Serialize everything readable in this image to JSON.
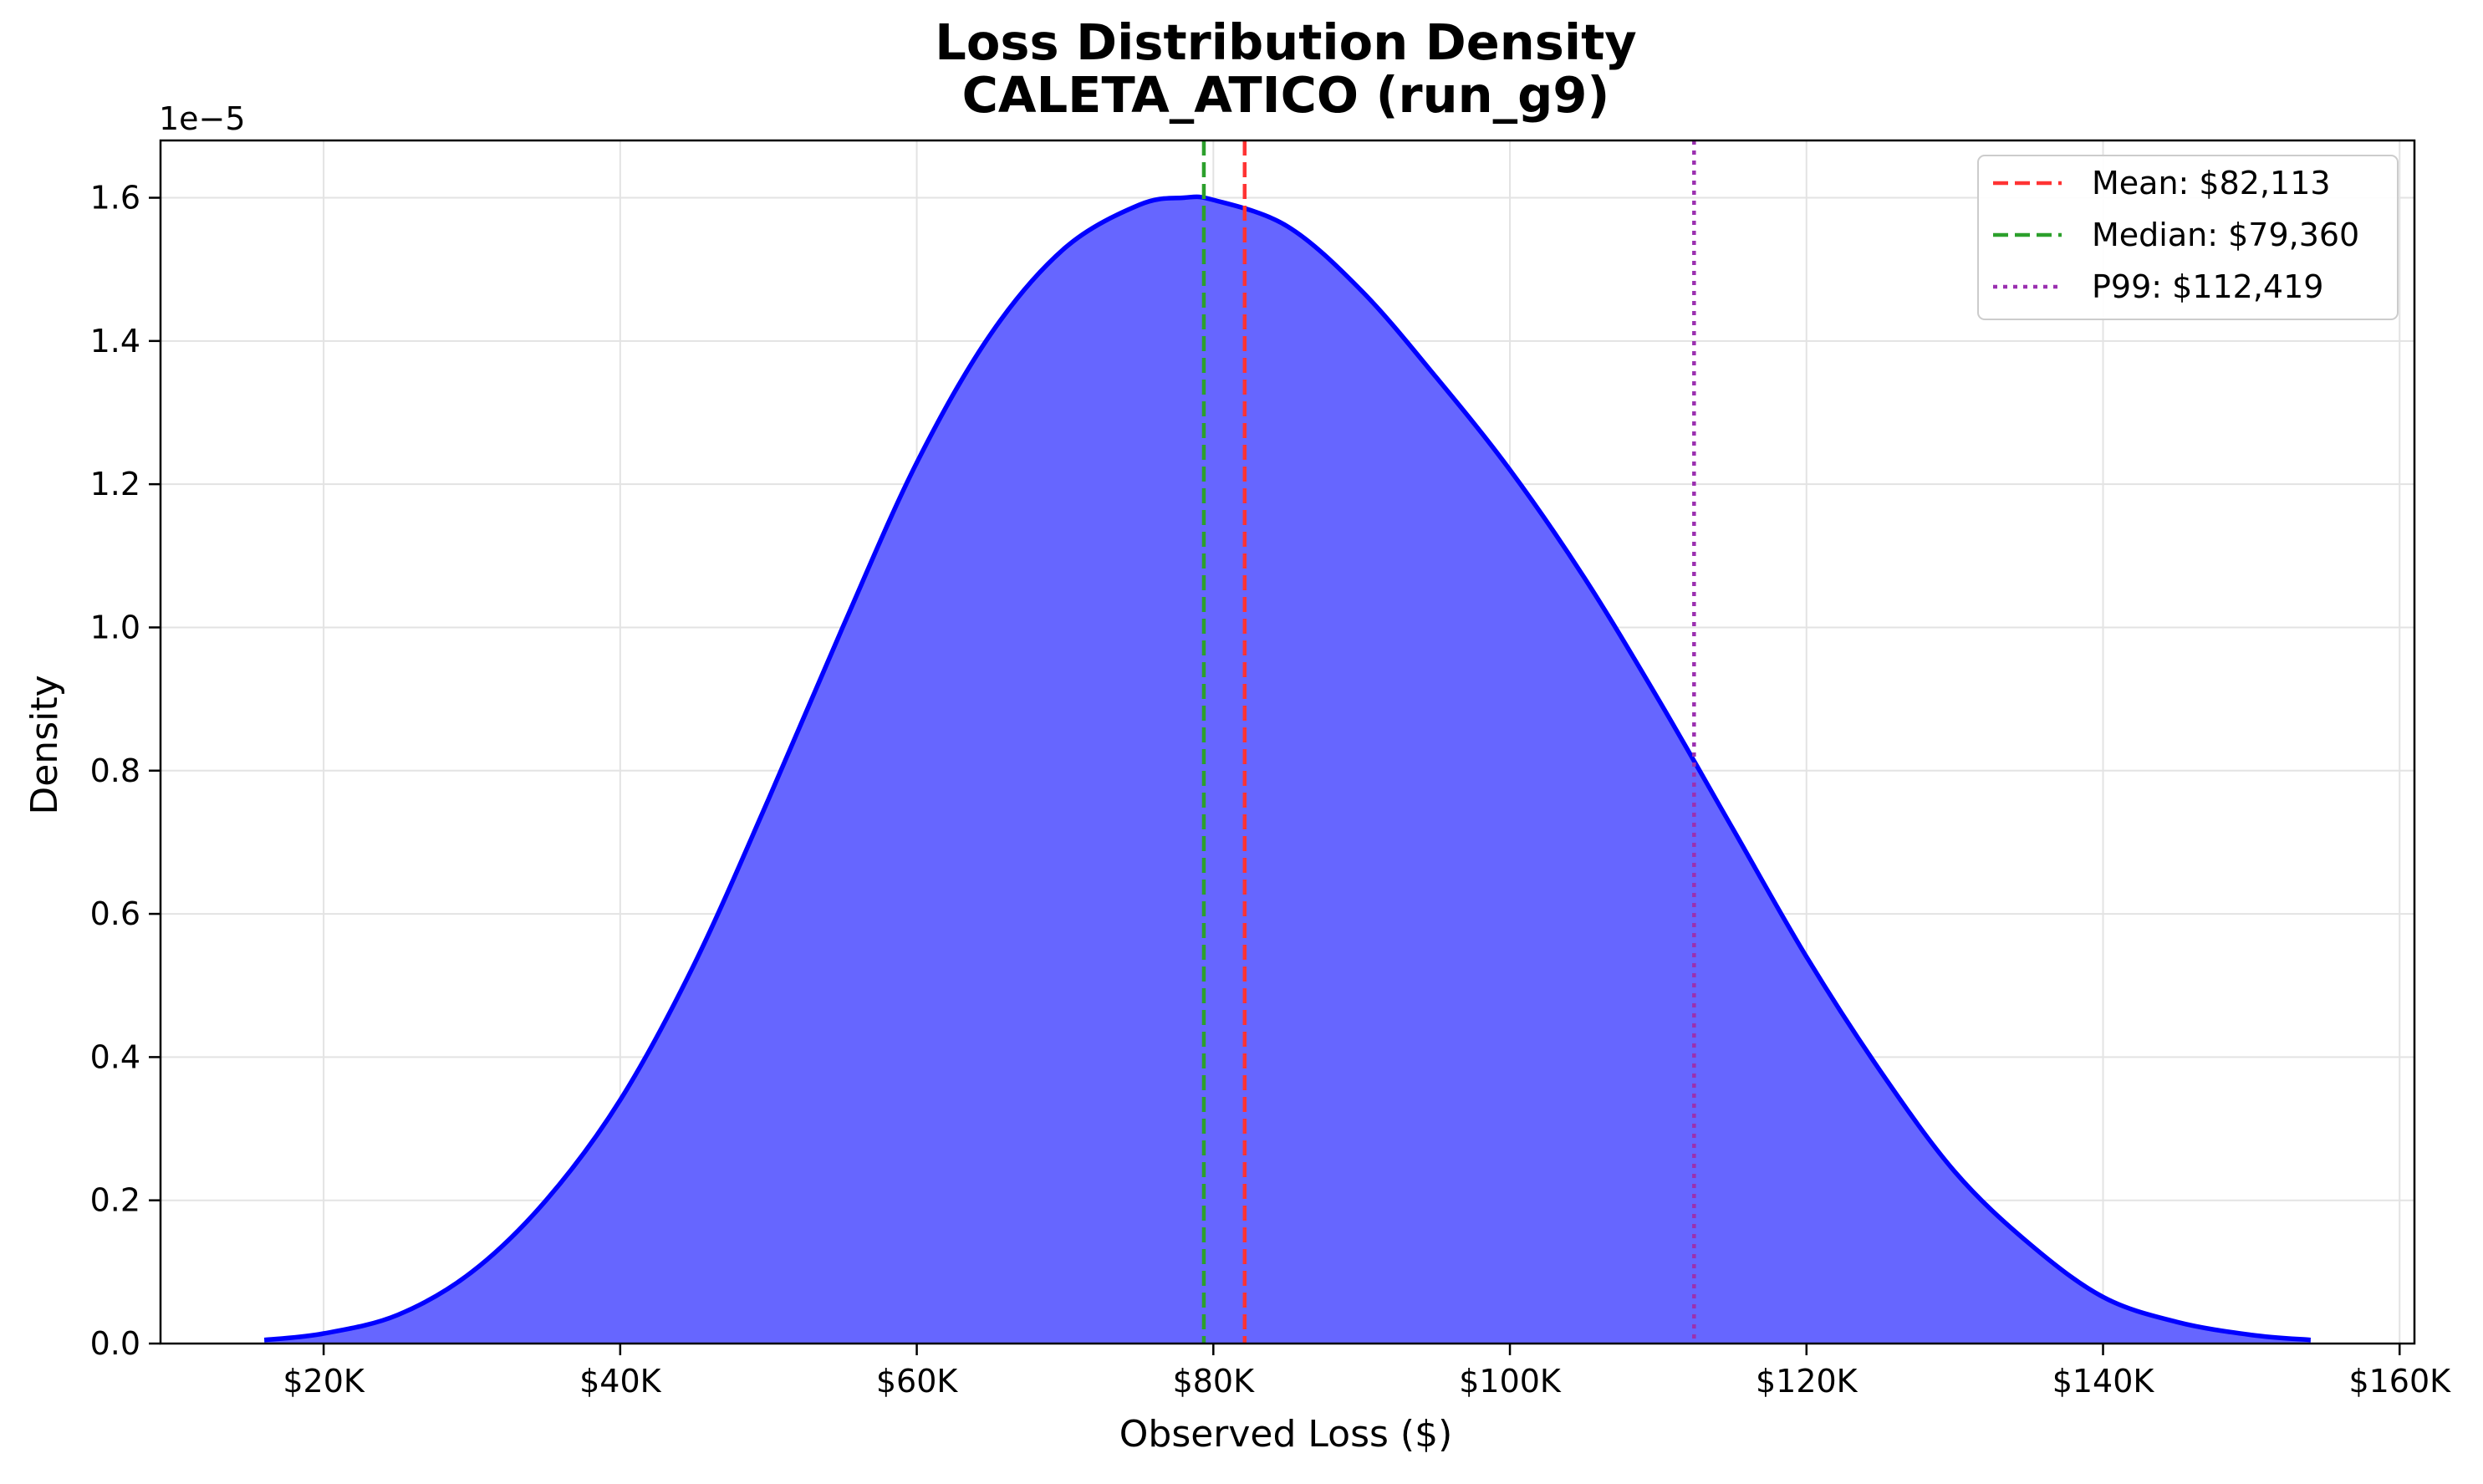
{
  "chart_data": {
    "type": "area",
    "title": "Loss Distribution Density",
    "subtitle": "CALETA_ATICO (run_g9)",
    "xlabel": "Observed Loss ($)",
    "ylabel": "Density",
    "y_offset_label": "1e−5",
    "xlim": [
      9000,
      161000
    ],
    "ylim": [
      0,
      1.68
    ],
    "x_ticks": [
      {
        "value": 20000,
        "label": "$20K"
      },
      {
        "value": 40000,
        "label": "$40K"
      },
      {
        "value": 60000,
        "label": "$60K"
      },
      {
        "value": 80000,
        "label": "$80K"
      },
      {
        "value": 100000,
        "label": "$100K"
      },
      {
        "value": 120000,
        "label": "$120K"
      },
      {
        "value": 140000,
        "label": "$140K"
      },
      {
        "value": 160000,
        "label": "$160K"
      }
    ],
    "y_ticks": [
      {
        "value": 0.0,
        "label": "0.0"
      },
      {
        "value": 0.2,
        "label": "0.2"
      },
      {
        "value": 0.4,
        "label": "0.4"
      },
      {
        "value": 0.6,
        "label": "0.6"
      },
      {
        "value": 0.8,
        "label": "0.8"
      },
      {
        "value": 1.0,
        "label": "1.0"
      },
      {
        "value": 1.2,
        "label": "1.2"
      },
      {
        "value": 1.4,
        "label": "1.4"
      },
      {
        "value": 1.6,
        "label": "1.6"
      }
    ],
    "grid": true,
    "legend_position": "top-right",
    "series": [
      {
        "points": [
          [
            16000,
            0.005
          ],
          [
            20000,
            0.014
          ],
          [
            25000,
            0.04
          ],
          [
            30000,
            0.1
          ],
          [
            35000,
            0.2
          ],
          [
            40000,
            0.34
          ],
          [
            45000,
            0.53
          ],
          [
            50000,
            0.76
          ],
          [
            55000,
            1.0
          ],
          [
            60000,
            1.23
          ],
          [
            65000,
            1.41
          ],
          [
            70000,
            1.53
          ],
          [
            75000,
            1.59
          ],
          [
            78000,
            1.6
          ],
          [
            80000,
            1.597
          ],
          [
            85000,
            1.56
          ],
          [
            90000,
            1.47
          ],
          [
            95000,
            1.35
          ],
          [
            100000,
            1.22
          ],
          [
            105000,
            1.07
          ],
          [
            110000,
            0.9
          ],
          [
            115000,
            0.72
          ],
          [
            120000,
            0.54
          ],
          [
            125000,
            0.38
          ],
          [
            130000,
            0.24
          ],
          [
            135000,
            0.14
          ],
          [
            140000,
            0.065
          ],
          [
            145000,
            0.03
          ],
          [
            150000,
            0.012
          ],
          [
            154000,
            0.005
          ]
        ],
        "line_color": "#0000ff",
        "fill_color": "#6666ff"
      }
    ],
    "reference_lines": [
      {
        "label": "Mean: $82,113",
        "value": 82113,
        "color": "#ff3333",
        "style": "dashed"
      },
      {
        "label": "Median: $79,360",
        "value": 79360,
        "color": "#2ca02c",
        "style": "dashed"
      },
      {
        "label": "P99: $112,419",
        "value": 112419,
        "color": "#9b30b0",
        "style": "dotted"
      }
    ]
  }
}
